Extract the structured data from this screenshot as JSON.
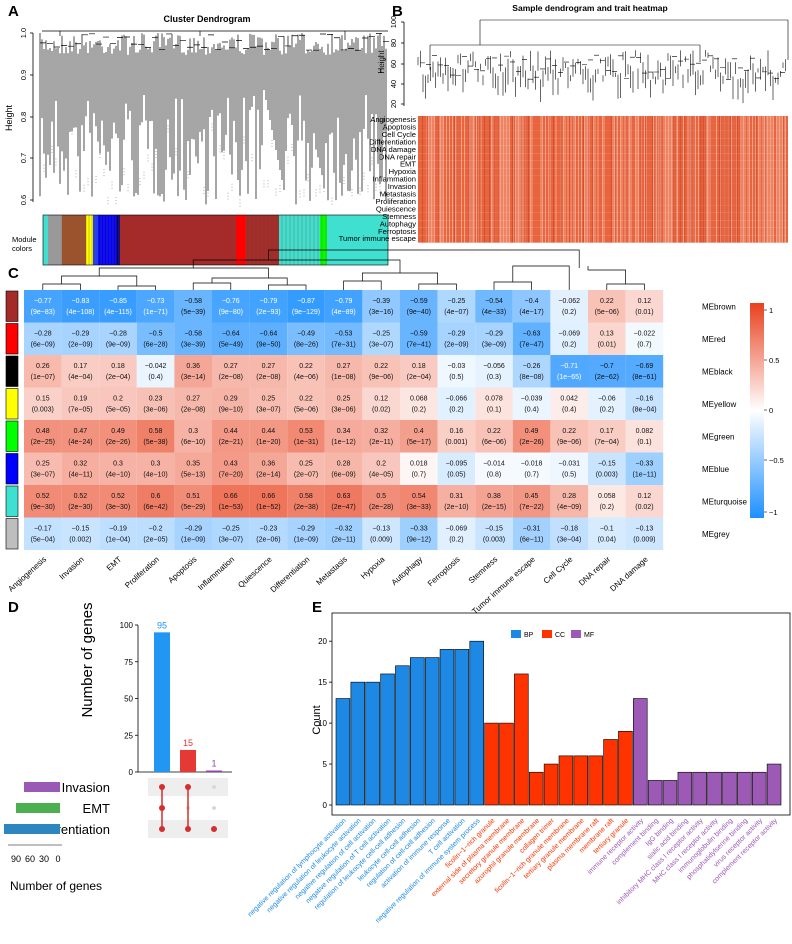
{
  "panels": {
    "a": "A",
    "b": "B",
    "c": "C",
    "d": "D",
    "e": "E"
  },
  "colors": {
    "bp": "#1E88E5",
    "cc": "#FF3300",
    "mf": "#9C59B6",
    "upset_main": "#2196F3",
    "upset_red": "#E53935",
    "upset_purple": "#8E44AD",
    "dot_active": "#D32F2F",
    "dot_inactive": "#D8D8D8",
    "heat_neg": "#1E90FF",
    "heat_mid": "#FFFFFF",
    "heat_pos": "#E8411E"
  },
  "panel_a": {
    "title": "Cluster Dendrogram",
    "ylabel": "Height",
    "yticks": [
      "0.6",
      "0.7",
      "0.8",
      "0.9",
      "1.0"
    ],
    "module_label_1": "Module",
    "module_label_2": "colors",
    "module_colors": [
      "#40E0D0",
      "#999999",
      "#A0522D",
      "#FFFF00",
      "#1E3CFF",
      "#0000FF",
      "#00008B",
      "#A52A2A",
      "#FF0000",
      "#A52A2A",
      "#40E0D0",
      "#00FF00",
      "#40E0D0"
    ]
  },
  "panel_b": {
    "title": "Sample dendrogram and trait heatmap",
    "ylabel": "Height",
    "yticks": [
      "20",
      "40",
      "60",
      "80",
      "100"
    ],
    "traits": [
      "Angiogenesis",
      "Apoptosis",
      "Cell Cycle",
      "Differentiation",
      "DNA damage",
      "DNA repair",
      "EMT",
      "Hypoxia",
      "Inflammation",
      "Invasion",
      "Metastasis",
      "Proliferation",
      "Quiescence",
      "Stemness",
      "Autophagy",
      "Ferroptosis",
      "Tumor immune escape"
    ]
  },
  "panel_c": {
    "chart_data": {
      "type": "heatmap",
      "columns": [
        "Angiogenesis",
        "Invasion",
        "EMT",
        "Proliferation",
        "Apoptosis",
        "Inflammation",
        "Quiescence",
        "Differentiation",
        "Metastasis",
        "Hypoxia",
        "Autophagy",
        "Ferroptosis",
        "Stemness",
        "Tumor immune escape",
        "Cell Cycle",
        "DNA repair",
        "DNA damage"
      ],
      "rows": [
        {
          "module": "MEbrown",
          "color": "#A52A2A",
          "r": [
            "−0.77",
            "−0.83",
            "−0.85",
            "−0.73",
            "−0.58",
            "−0.76",
            "−0.79",
            "−0.87",
            "−0.79",
            "−0.39",
            "−0.59",
            "−0.25",
            "−0.54",
            "−0.4",
            "−0.062",
            "0.22",
            "0.12"
          ],
          "p": [
            "(9e−83)",
            "(4e−108)",
            "(4e−115)",
            "(1e−71)",
            "(5e−39)",
            "(9e−80)",
            "(2e−93)",
            "(9e−129)",
            "(4e−89)",
            "(3e−16)",
            "(9e−40)",
            "(4e−07)",
            "(4e−33)",
            "(4e−17)",
            "(0.2)",
            "(5e−06)",
            "(0.01)"
          ]
        },
        {
          "module": "MEred",
          "color": "#FF0000",
          "r": [
            "−0.28",
            "−0.29",
            "−0.28",
            "−0.5",
            "−0.58",
            "−0.64",
            "−0.64",
            "−0.49",
            "−0.53",
            "−0.25",
            "−0.59",
            "−0.29",
            "−0.29",
            "−0.63",
            "−0.069",
            "0.13",
            "−0.022"
          ],
          "p": [
            "(6e−09)",
            "(2e−09)",
            "(9e−09)",
            "(6e−28)",
            "(3e−39)",
            "(5e−49)",
            "(9e−50)",
            "(8e−26)",
            "(7e−31)",
            "(3e−07)",
            "(7e−41)",
            "(2e−09)",
            "(3e−09)",
            "(7e−47)",
            "(0.2)",
            "(0.01)",
            "(0.7)"
          ]
        },
        {
          "module": "MEblack",
          "color": "#000000",
          "r": [
            "0.26",
            "0.17",
            "0.18",
            "−0.042",
            "0.36",
            "0.27",
            "0.27",
            "0.22",
            "0.27",
            "0.22",
            "0.18",
            "−0.03",
            "−0.056",
            "−0.26",
            "−0.71",
            "−0.7",
            "−0.69"
          ],
          "p": [
            "(1e−07)",
            "(4e−04)",
            "(2e−04)",
            "(0.4)",
            "(3e−14)",
            "(2e−08)",
            "(2e−08)",
            "(4e−06)",
            "(1e−08)",
            "(9e−06)",
            "(2e−04)",
            "(0.5)",
            "(0.3)",
            "(8e−08)",
            "(1e−65)",
            "(2e−62)",
            "(8e−61)"
          ]
        },
        {
          "module": "MEyellow",
          "color": "#FFFF00",
          "r": [
            "0.15",
            "0.19",
            "0.2",
            "0.23",
            "0.27",
            "0.29",
            "0.25",
            "0.22",
            "0.25",
            "0.12",
            "0.068",
            "−0.066",
            "0.078",
            "−0.039",
            "0.042",
            "−0.06",
            "−0.16"
          ],
          "p": [
            "(0.003)",
            "(7e−05)",
            "(5e−05)",
            "(3e−06)",
            "(2e−08)",
            "(9e−10)",
            "(3e−07)",
            "(5e−06)",
            "(3e−06)",
            "(0.02)",
            "(0.2)",
            "(0.2)",
            "(0.1)",
            "(0.4)",
            "(0.4)",
            "(0.2)",
            "(8e−04)"
          ]
        },
        {
          "module": "MEgreen",
          "color": "#00FF00",
          "r": [
            "0.48",
            "0.47",
            "0.49",
            "0.58",
            "0.3",
            "0.44",
            "0.44",
            "0.53",
            "0.34",
            "0.32",
            "0.4",
            "0.16",
            "0.22",
            "0.49",
            "0.22",
            "0.17",
            "0.082"
          ],
          "p": [
            "(2e−25)",
            "(4e−24)",
            "(2e−26)",
            "(5e−38)",
            "(6e−10)",
            "(2e−21)",
            "(1e−20)",
            "(1e−31)",
            "(1e−12)",
            "(2e−11)",
            "(5e−17)",
            "(0.001)",
            "(6e−06)",
            "(2e−26)",
            "(9e−06)",
            "(7e−04)",
            "(0.1)"
          ]
        },
        {
          "module": "MEblue",
          "color": "#0000FF",
          "r": [
            "0.25",
            "0.32",
            "0.3",
            "0.3",
            "0.35",
            "0.43",
            "0.36",
            "0.25",
            "0.28",
            "0.2",
            "0.018",
            "−0.095",
            "−0.014",
            "−0.018",
            "−0.031",
            "−0.15",
            "−0.33"
          ],
          "p": [
            "(3e−07)",
            "(4e−11)",
            "(4e−10)",
            "(4e−10)",
            "(5e−13)",
            "(7e−20)",
            "(2e−14)",
            "(2e−07)",
            "(6e−09)",
            "(4e−05)",
            "(0.7)",
            "(0.05)",
            "(0.8)",
            "(0.7)",
            "(0.5)",
            "(0.003)",
            "(1e−11)"
          ]
        },
        {
          "module": "MEturquoise",
          "color": "#40E0D0",
          "r": [
            "0.52",
            "0.52",
            "0.52",
            "0.6",
            "0.51",
            "0.66",
            "0.66",
            "0.58",
            "0.63",
            "0.5",
            "0.54",
            "0.31",
            "0.38",
            "0.45",
            "0.28",
            "0.058",
            "0.12"
          ],
          "p": [
            "(9e−30)",
            "(2e−30)",
            "(3e−30)",
            "(6e−42)",
            "(5e−29)",
            "(1e−53)",
            "(1e−52)",
            "(2e−38)",
            "(2e−47)",
            "(2e−28)",
            "(3e−33)",
            "(2e−10)",
            "(2e−15)",
            "(7e−22)",
            "(4e−09)",
            "(0.2)",
            "(0.02)"
          ]
        },
        {
          "module": "MEgrey",
          "color": "#BEBEBE",
          "r": [
            "−0.17",
            "−0.15",
            "−0.19",
            "−0.2",
            "−0.29",
            "−0.25",
            "−0.23",
            "−0.29",
            "−0.32",
            "−0.13",
            "−0.33",
            "−0.069",
            "−0.15",
            "−0.31",
            "−0.18",
            "−0.1",
            "−0.13"
          ],
          "p": [
            "(5e−04)",
            "(0.002)",
            "(1e−04)",
            "(2e−05)",
            "(1e−09)",
            "(3e−07)",
            "(2e−06)",
            "(1e−09)",
            "(2e−11)",
            "(0.009)",
            "(9e−12)",
            "(0.2)",
            "(0.003)",
            "(6e−11)",
            "(3e−04)",
            "(0.04)",
            "(0.009)"
          ]
        }
      ],
      "legend_ticks": [
        "1",
        "0.5",
        "0",
        "−0.5",
        "−1"
      ],
      "range": [
        -1,
        1
      ]
    }
  },
  "panel_d": {
    "chart_data": {
      "type": "bar",
      "ylabel": "Number of genes",
      "values": [
        95,
        15,
        1
      ],
      "value_labels": [
        "95",
        "15",
        "1"
      ],
      "yticks": [
        "0",
        "25",
        "50",
        "75",
        "100"
      ],
      "ylim": [
        0,
        100
      ],
      "sets": [
        "Invasion",
        "EMT",
        "Differentiation"
      ],
      "set_colors": [
        "#9B59B6",
        "#4CAF50",
        "#2E86C1"
      ],
      "set_size_ticks": [
        "90",
        "60",
        "30",
        "0"
      ],
      "set_size_label": "Number of genes",
      "intersections": [
        [
          0,
          1,
          2
        ],
        [
          0,
          2
        ],
        [
          2
        ]
      ]
    }
  },
  "panel_e": {
    "chart_data": {
      "type": "bar",
      "ylabel": "Count",
      "ylim": [
        0,
        21
      ],
      "yticks": [
        "0",
        "5",
        "10",
        "15",
        "20"
      ],
      "legend": [
        {
          "name": "BP",
          "key": "bp"
        },
        {
          "name": "CC",
          "key": "cc"
        },
        {
          "name": "MF",
          "key": "mf"
        }
      ],
      "categories": [
        {
          "label": "negative regulation of lymphocyte activation",
          "value": 13,
          "group": "bp"
        },
        {
          "label": "negative regulation of leukocyte activation",
          "value": 15,
          "group": "bp"
        },
        {
          "label": "negative regulation of cell activation",
          "value": 15,
          "group": "bp"
        },
        {
          "label": "negative regulation of T cell activation",
          "value": 16,
          "group": "bp"
        },
        {
          "label": "regulation of leukocyte cell-cell adhesion",
          "value": 17,
          "group": "bp"
        },
        {
          "label": "leukocyte cell-cell adhesion",
          "value": 18,
          "group": "bp"
        },
        {
          "label": "regulation of cell-cell adhesion",
          "value": 18,
          "group": "bp"
        },
        {
          "label": "activation of immune response",
          "value": 19,
          "group": "bp"
        },
        {
          "label": "T cell activation",
          "value": 19,
          "group": "bp"
        },
        {
          "label": "negative regulation of immune system process",
          "value": 20,
          "group": "bp"
        },
        {
          "label": "ficolin−1−rich granule",
          "value": 10,
          "group": "cc"
        },
        {
          "label": "external side of plasma membrane",
          "value": 10,
          "group": "cc"
        },
        {
          "label": "secretory granule membrane",
          "value": 16,
          "group": "cc"
        },
        {
          "label": "azurophil granule membrane",
          "value": 4,
          "group": "cc"
        },
        {
          "label": "collagen trimer",
          "value": 5,
          "group": "cc"
        },
        {
          "label": "ficolin−1−rich granule membrane",
          "value": 6,
          "group": "cc"
        },
        {
          "label": "tertiary granule membrane",
          "value": 6,
          "group": "cc"
        },
        {
          "label": "plasma membrane raft",
          "value": 6,
          "group": "cc"
        },
        {
          "label": "membrane raft",
          "value": 8,
          "group": "cc"
        },
        {
          "label": "tertiary granule",
          "value": 9,
          "group": "cc"
        },
        {
          "label": "immune receptor activity",
          "value": 13,
          "group": "mf"
        },
        {
          "label": "complement binding",
          "value": 3,
          "group": "mf"
        },
        {
          "label": "IgG binding",
          "value": 3,
          "group": "mf"
        },
        {
          "label": "sialic acid binding",
          "value": 4,
          "group": "mf"
        },
        {
          "label": "inhibitory MHC class I receptor activity",
          "value": 4,
          "group": "mf"
        },
        {
          "label": "MHC class I receptor activity",
          "value": 4,
          "group": "mf"
        },
        {
          "label": "immunoglobulin binding",
          "value": 4,
          "group": "mf"
        },
        {
          "label": "phosphatidylserine binding",
          "value": 4,
          "group": "mf"
        },
        {
          "label": "virus receptor activity",
          "value": 4,
          "group": "mf"
        },
        {
          "label": "complement receptor activity",
          "value": 5,
          "group": "mf"
        }
      ]
    }
  }
}
